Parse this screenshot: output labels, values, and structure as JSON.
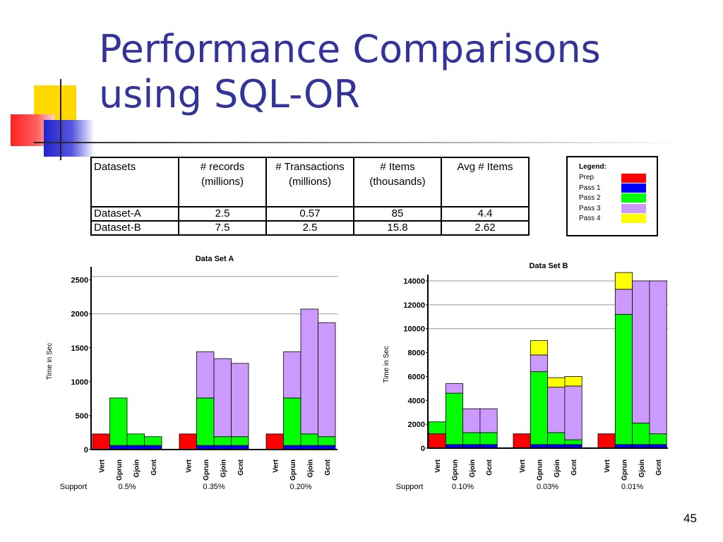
{
  "slide": {
    "title_lines": [
      "Performance Comparisons",
      "using SQL-OR"
    ],
    "page_number": "45",
    "title_color": "#333399"
  },
  "table": {
    "header": [
      [
        "Datasets",
        ""
      ],
      [
        "# records",
        "(millions)"
      ],
      [
        "# Transactions",
        "(millions)"
      ],
      [
        "# Items",
        "(thousands)"
      ],
      [
        "Avg # Items",
        ""
      ]
    ],
    "rows": [
      [
        "Dataset-A",
        "2.5",
        "0.57",
        "85",
        "4.4"
      ],
      [
        "Dataset-B",
        "7.5",
        "2.5",
        "15.8",
        "2.62"
      ]
    ]
  },
  "legend": {
    "title": "Legend:",
    "items": [
      {
        "label": "Prep",
        "color": "#ff0000"
      },
      {
        "label": "Pass 1",
        "color": "#0000ff"
      },
      {
        "label": "Pass 2",
        "color": "#00ff00"
      },
      {
        "label": "Pass 3",
        "color": "#cc99ff"
      },
      {
        "label": "Pass 4",
        "color": "#ffff00"
      }
    ]
  },
  "chart_data": [
    {
      "type": "bar",
      "stacked": true,
      "title": "Data Set A",
      "ylabel": "Time in Sec",
      "support_label": "Support",
      "y_ticks": [
        0,
        500,
        1000,
        1500,
        2000,
        2500
      ],
      "ylim": [
        0,
        2600
      ],
      "gridlines": [
        2000,
        2550
      ],
      "series_names": [
        "Prep",
        "Pass 1",
        "Pass 2",
        "Pass 3",
        "Pass 4"
      ],
      "groups": [
        {
          "support": "0.5%",
          "bars": [
            {
              "label": "Vert",
              "values": [
                230,
                0,
                0,
                0,
                0
              ]
            },
            {
              "label": "Gprun",
              "values": [
                0,
                60,
                700,
                0,
                0
              ]
            },
            {
              "label": "Gjoin",
              "values": [
                0,
                60,
                170,
                0,
                0
              ]
            },
            {
              "label": "Gcnt",
              "values": [
                0,
                60,
                130,
                0,
                0
              ]
            }
          ]
        },
        {
          "support": "0.35%",
          "bars": [
            {
              "label": "Vert",
              "values": [
                230,
                0,
                0,
                0,
                0
              ]
            },
            {
              "label": "Gprun",
              "values": [
                0,
                60,
                700,
                680,
                0
              ]
            },
            {
              "label": "Gjoin",
              "values": [
                0,
                60,
                130,
                1150,
                0
              ]
            },
            {
              "label": "Gcnt",
              "values": [
                0,
                60,
                130,
                1080,
                0
              ]
            }
          ]
        },
        {
          "support": "0.20%",
          "bars": [
            {
              "label": "Vert",
              "values": [
                230,
                0,
                0,
                0,
                0
              ]
            },
            {
              "label": "Gprun",
              "values": [
                0,
                60,
                700,
                680,
                0
              ]
            },
            {
              "label": "Gjoin",
              "values": [
                0,
                60,
                170,
                1840,
                0
              ]
            },
            {
              "label": "Gcnt",
              "values": [
                0,
                60,
                130,
                1680,
                0
              ]
            }
          ]
        }
      ]
    },
    {
      "type": "bar",
      "stacked": true,
      "title": "Data Set B",
      "ylabel": "Time in Sec",
      "support_label": "Support",
      "y_ticks": [
        0,
        2000,
        4000,
        6000,
        8000,
        10000,
        12000,
        14000
      ],
      "ylim": [
        0,
        14000
      ],
      "gridlines": [
        10000,
        12000,
        14000
      ],
      "series_names": [
        "Prep",
        "Pass 1",
        "Pass 2",
        "Pass 3",
        "Pass 4"
      ],
      "groups": [
        {
          "support": "0.10%",
          "bars": [
            {
              "label": "Vert",
              "values": [
                1200,
                0,
                1000,
                0,
                0
              ]
            },
            {
              "label": "Gprun",
              "values": [
                0,
                300,
                4300,
                800,
                0
              ]
            },
            {
              "label": "Gjoin",
              "values": [
                0,
                300,
                1000,
                2000,
                0
              ]
            },
            {
              "label": "Gcnt",
              "values": [
                0,
                300,
                1000,
                2000,
                0
              ]
            }
          ]
        },
        {
          "support": "0.03%",
          "bars": [
            {
              "label": "Vert",
              "values": [
                1200,
                0,
                0,
                0,
                0
              ]
            },
            {
              "label": "Gprun",
              "values": [
                0,
                300,
                6100,
                1400,
                1200
              ]
            },
            {
              "label": "Gjoin",
              "values": [
                0,
                300,
                1000,
                3800,
                800
              ]
            },
            {
              "label": "Gcnt",
              "values": [
                0,
                300,
                400,
                4500,
                800
              ]
            }
          ]
        },
        {
          "support": "0.01%",
          "bars": [
            {
              "label": "Vert",
              "values": [
                1200,
                0,
                0,
                0,
                0
              ]
            },
            {
              "label": "Gprun",
              "values": [
                0,
                300,
                10900,
                2100,
                1400
              ]
            },
            {
              "label": "Gjoin",
              "values": [
                0,
                300,
                1800,
                11900,
                0
              ]
            },
            {
              "label": "Gcnt",
              "values": [
                0,
                300,
                900,
                12800,
                0
              ]
            }
          ]
        }
      ]
    }
  ]
}
